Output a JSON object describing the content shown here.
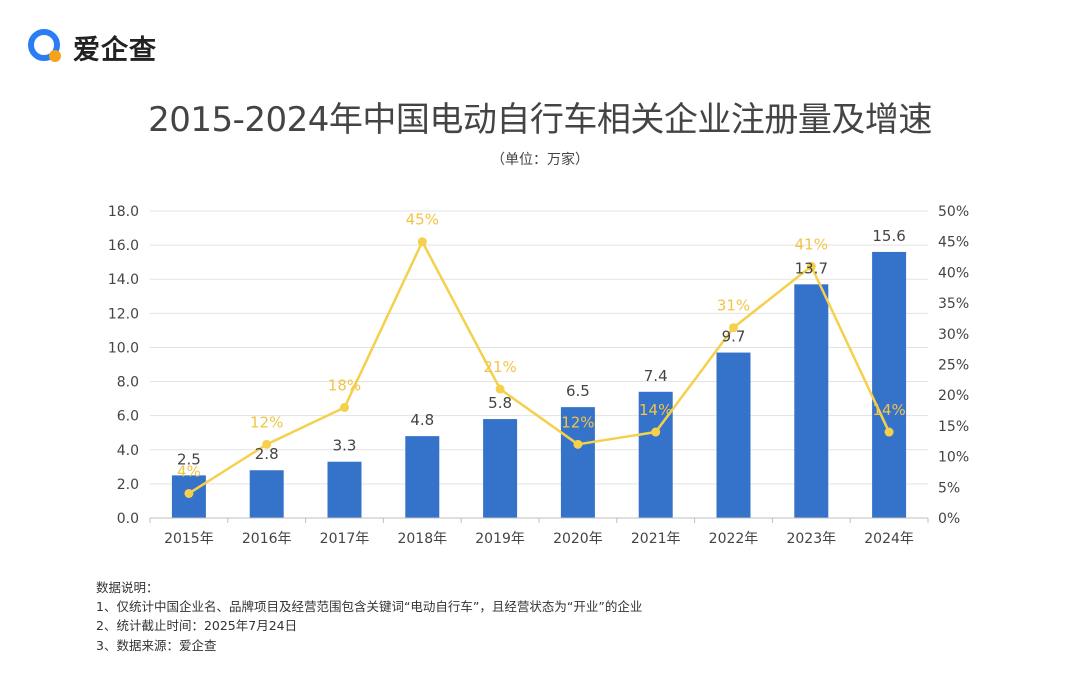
{
  "brand": {
    "name": "爱企查"
  },
  "title": "2015-2024年中国电动自行车相关企业注册量及增速",
  "subtitle": "（单位：万家）",
  "colors": {
    "bar": "#3572C9",
    "line": "#F5D04C",
    "line_label": "#F2C448",
    "text": "#444444",
    "grid": "#E3E3E3",
    "brand_blue": "#2A7DF4",
    "brand_orange": "#F6A21C"
  },
  "chart_data": {
    "type": "bar",
    "categories": [
      "2015年",
      "2016年",
      "2017年",
      "2018年",
      "2019年",
      "2020年",
      "2021年",
      "2022年",
      "2023年",
      "2024年"
    ],
    "series": [
      {
        "type": "bar",
        "axis": "left",
        "values": [
          2.5,
          2.8,
          3.3,
          4.8,
          5.8,
          6.5,
          7.4,
          9.7,
          13.7,
          15.6
        ],
        "labels": [
          "2.5",
          "2.8",
          "3.3",
          "4.8",
          "5.8",
          "6.5",
          "7.4",
          "9.7",
          "13.7",
          "15.6"
        ]
      },
      {
        "type": "line",
        "axis": "right",
        "values": [
          4,
          12,
          18,
          45,
          21,
          12,
          14,
          31,
          41,
          14
        ],
        "labels": [
          "4%",
          "12%",
          "18%",
          "45%",
          "21%",
          "12%",
          "14%",
          "31%",
          "41%",
          "14%"
        ]
      }
    ],
    "y_left": {
      "min": 0,
      "max": 18,
      "ticks": [
        "0.0",
        "2.0",
        "4.0",
        "6.0",
        "8.0",
        "10.0",
        "12.0",
        "14.0",
        "16.0",
        "18.0"
      ]
    },
    "y_right": {
      "min": 0,
      "max": 50,
      "ticks": [
        "0%",
        "5%",
        "10%",
        "15%",
        "20%",
        "25%",
        "30%",
        "35%",
        "40%",
        "45%",
        "50%"
      ]
    },
    "grid": true
  },
  "notes": {
    "heading": "数据说明：",
    "items": [
      "1、仅统计中国企业名、品牌项目及经营范围包含关键词“电动自行车”，且经营状态为“开业”的企业",
      "2、统计截止时间：2025年7月24日",
      "3、数据来源：爱企查"
    ]
  }
}
